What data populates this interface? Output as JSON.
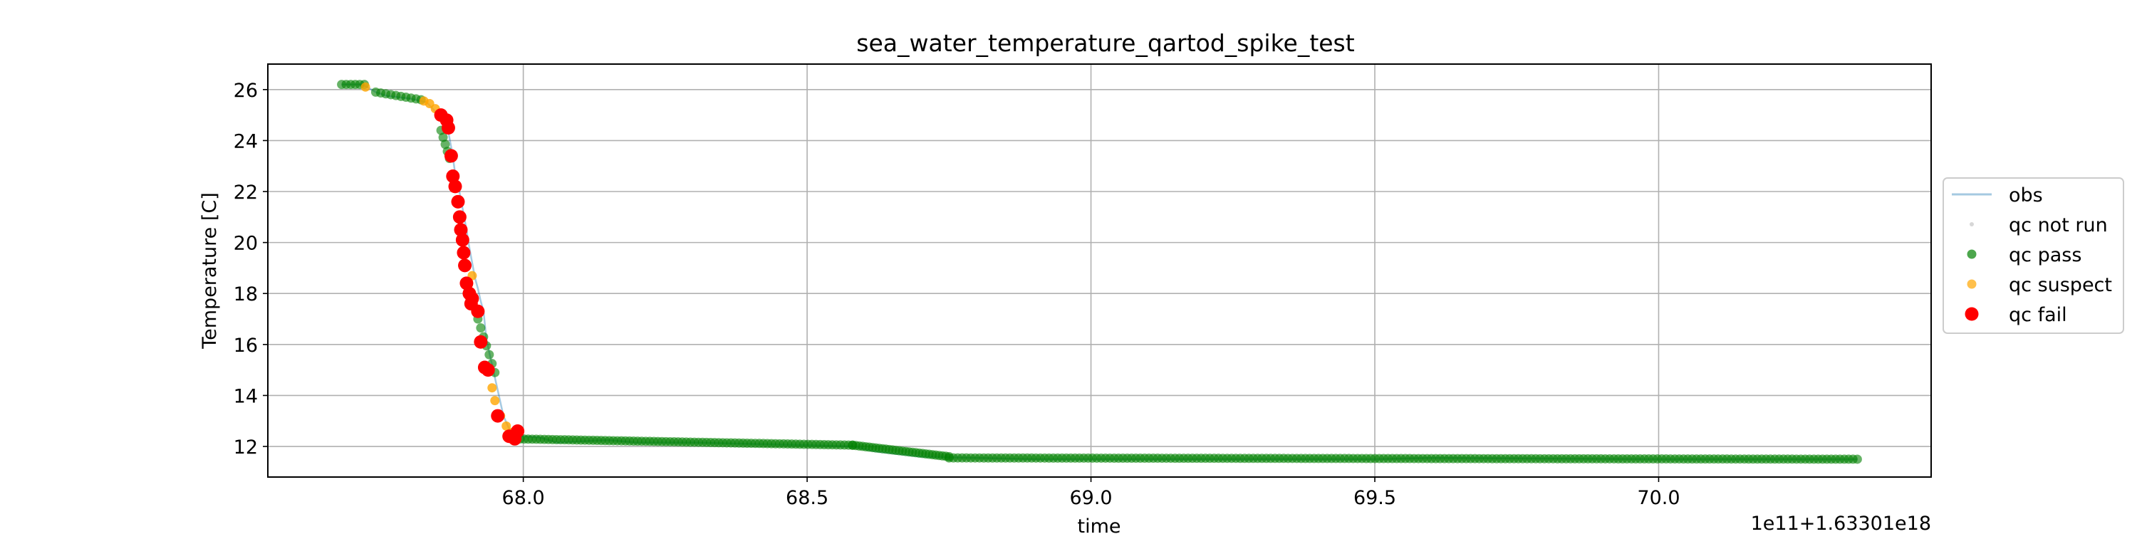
{
  "chart_data": {
    "type": "scatter",
    "title": "sea_water_temperature_qartod_spike_test",
    "xlabel": "time",
    "ylabel": "Temperature [C]",
    "x_offset_label": "1e11+1.63301e18",
    "xlim": [
      67.55,
      70.48
    ],
    "ylim": [
      10.8,
      27.0
    ],
    "x_ticks": [
      "68.0",
      "68.5",
      "69.0",
      "69.5",
      "70.0"
    ],
    "y_ticks": [
      "12",
      "14",
      "16",
      "18",
      "20",
      "22",
      "24",
      "26"
    ],
    "grid": true,
    "legend_position": "right, outside plot",
    "legend": [
      {
        "label": "obs",
        "marker": "line",
        "color": "#1f77b4"
      },
      {
        "label": "qc not run",
        "marker": "dot-small",
        "color": "#b0b0b0"
      },
      {
        "label": "qc pass",
        "marker": "dot",
        "color": "#008000"
      },
      {
        "label": "qc suspect",
        "marker": "dot",
        "color": "#ffa500"
      },
      {
        "label": "qc fail",
        "marker": "dot-large",
        "color": "#ff0000"
      }
    ],
    "obs_curve": {
      "x": [
        67.68,
        67.715,
        67.725,
        67.74,
        67.76,
        67.8,
        67.83,
        67.855,
        67.865,
        67.875,
        67.88,
        67.885,
        67.89,
        67.895,
        67.9,
        67.905,
        67.91,
        67.915,
        67.92,
        67.925,
        67.93,
        67.935,
        67.94,
        67.945,
        67.955,
        67.965,
        67.975,
        67.985,
        68.0,
        68.03,
        68.06,
        68.1,
        68.15,
        68.2,
        68.3,
        68.4,
        68.5,
        68.58,
        68.62,
        68.7,
        68.8,
        68.9,
        69.0,
        69.5,
        69.6,
        70.0,
        70.35
      ],
      "y": [
        26.2,
        26.2,
        26.1,
        25.9,
        25.75,
        25.65,
        25.5,
        24.9,
        24.7,
        23.5,
        22.7,
        22.3,
        21.7,
        21.1,
        20.5,
        19.8,
        19.2,
        18.6,
        18.2,
        17.7,
        17.3,
        16.2,
        15.7,
        15.2,
        14.2,
        13.2,
        12.7,
        12.45,
        12.4,
        12.35,
        12.15,
        12.2,
        12.25,
        12.15,
        12.15,
        12.1,
        12.05,
        12.0,
        11.8,
        11.6,
        11.55,
        11.5,
        11.5,
        11.5,
        11.55,
        11.5,
        11.5
      ]
    },
    "qc_pass": {
      "segments": [
        {
          "x": [
            67.68,
            67.72
          ],
          "y": [
            26.2,
            26.2
          ],
          "n": 6
        },
        {
          "x": [
            67.74,
            67.82
          ],
          "y": [
            25.9,
            25.6
          ],
          "n": 10
        },
        {
          "x": [
            67.855,
            67.87
          ],
          "y": [
            24.4,
            23.3
          ],
          "n": 5
        },
        {
          "x": [
            67.92,
            67.95
          ],
          "y": [
            17.0,
            14.9
          ],
          "n": 7
        },
        {
          "x": [
            67.98,
            68.58
          ],
          "y": [
            12.3,
            12.05
          ],
          "n": 85
        },
        {
          "x": [
            68.58,
            68.75
          ],
          "y": [
            12.05,
            11.6
          ],
          "n": 30
        },
        {
          "x": [
            68.75,
            70.35
          ],
          "y": [
            11.55,
            11.5
          ],
          "n": 210
        }
      ]
    },
    "qc_suspect": {
      "x": [
        67.722,
        67.825,
        67.835,
        67.845,
        67.865,
        67.91,
        67.945,
        67.95,
        67.96,
        67.97,
        67.98
      ],
      "y": [
        26.1,
        25.55,
        25.45,
        25.25,
        24.6,
        18.7,
        14.3,
        13.8,
        13.2,
        12.8,
        12.55
      ]
    },
    "qc_fail": {
      "x": [
        67.855,
        67.865,
        67.868,
        67.873,
        67.876,
        67.88,
        67.885,
        67.888,
        67.89,
        67.893,
        67.895,
        67.897,
        67.9,
        67.905,
        67.908,
        67.91,
        67.92,
        67.925,
        67.932,
        67.938,
        67.955,
        67.975,
        67.985,
        67.99
      ],
      "y": [
        25.0,
        24.8,
        24.5,
        23.4,
        22.6,
        22.2,
        21.6,
        21.0,
        20.5,
        20.1,
        19.6,
        19.1,
        18.4,
        18.0,
        17.6,
        17.8,
        17.3,
        16.1,
        15.1,
        15.0,
        13.2,
        12.4,
        12.3,
        12.6
      ]
    }
  }
}
